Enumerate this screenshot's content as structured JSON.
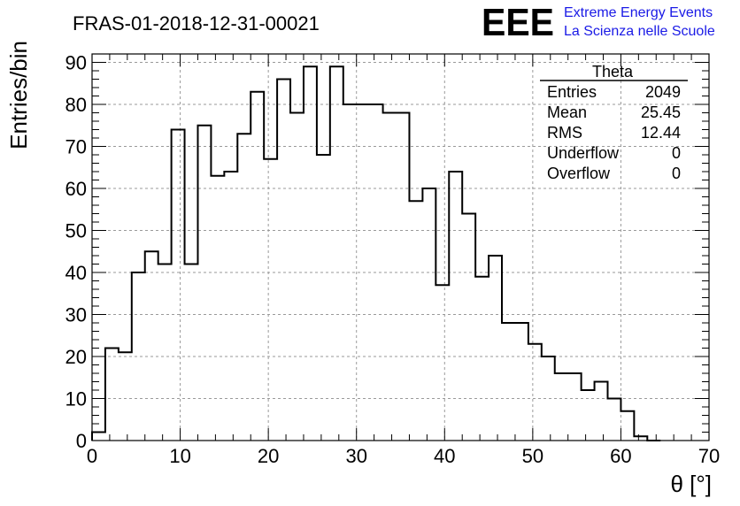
{
  "chart_data": {
    "type": "bar",
    "title": "FRAS-01-2018-12-31-00021",
    "xlabel": "θ [°]",
    "ylabel": "Entries/bin",
    "xlim": [
      0,
      70
    ],
    "ylim": [
      0,
      92
    ],
    "grid": true,
    "bin_width": 1.5,
    "x_start": 0,
    "values": [
      2,
      22,
      21,
      40,
      45,
      42,
      74,
      42,
      75,
      63,
      64,
      73,
      83,
      67,
      86,
      78,
      89,
      68,
      89,
      80,
      80,
      80,
      78,
      78,
      57,
      60,
      37,
      64,
      54,
      39,
      44,
      28,
      28,
      23,
      20,
      16,
      16,
      12,
      14,
      10,
      7,
      1,
      0
    ],
    "x_ticks": [
      "0",
      "10",
      "20",
      "30",
      "40",
      "50",
      "60",
      "70"
    ],
    "y_ticks": [
      "0",
      "10",
      "20",
      "30",
      "40",
      "50",
      "60",
      "70",
      "80",
      "90"
    ],
    "stats": {
      "name": "Theta",
      "rows": [
        {
          "label": "Entries",
          "value": "2049"
        },
        {
          "label": "Mean",
          "value": "25.45"
        },
        {
          "label": "RMS",
          "value": "12.44"
        },
        {
          "label": "Underflow",
          "value": "0"
        },
        {
          "label": "Overflow",
          "value": "0"
        }
      ]
    }
  },
  "logo": {
    "mark": "EEE",
    "line1": "Extreme Energy Events",
    "line2": "La Scienza nelle Scuole",
    "color": "#1a1ae6"
  }
}
